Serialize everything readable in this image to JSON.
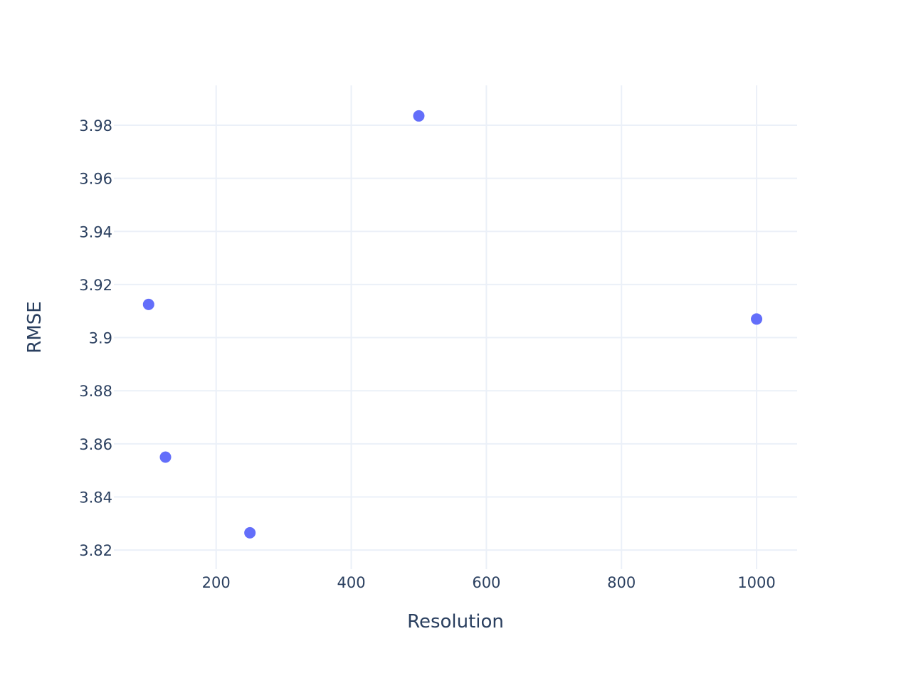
{
  "colors": {
    "background": "#ffffff",
    "grid": "#ebf0f8",
    "text": "#2a3f5f",
    "marker": "#636efa"
  },
  "chart_data": {
    "type": "scatter",
    "title": "",
    "xlabel": "Resolution",
    "ylabel": "RMSE",
    "xlim": [
      48.6,
      1060.0
    ],
    "ylim": [
      3.8128,
      3.995
    ],
    "x_ticks": [
      200,
      400,
      600,
      800,
      1000
    ],
    "x_tick_labels": [
      "200",
      "400",
      "600",
      "800",
      "1000"
    ],
    "y_ticks": [
      3.82,
      3.84,
      3.86,
      3.88,
      3.9,
      3.92,
      3.94,
      3.96,
      3.98
    ],
    "y_tick_labels": [
      "3.82",
      "3.84",
      "3.86",
      "3.88",
      "3.9",
      "3.92",
      "3.94",
      "3.96",
      "3.98"
    ],
    "grid": true,
    "legend": "none",
    "series": [
      {
        "marker_color": "#636efa",
        "points": [
          {
            "x": 100,
            "y": 3.9125
          },
          {
            "x": 125,
            "y": 3.855
          },
          {
            "x": 250,
            "y": 3.8265
          },
          {
            "x": 500,
            "y": 3.9835
          },
          {
            "x": 1000,
            "y": 3.907
          }
        ]
      }
    ]
  }
}
